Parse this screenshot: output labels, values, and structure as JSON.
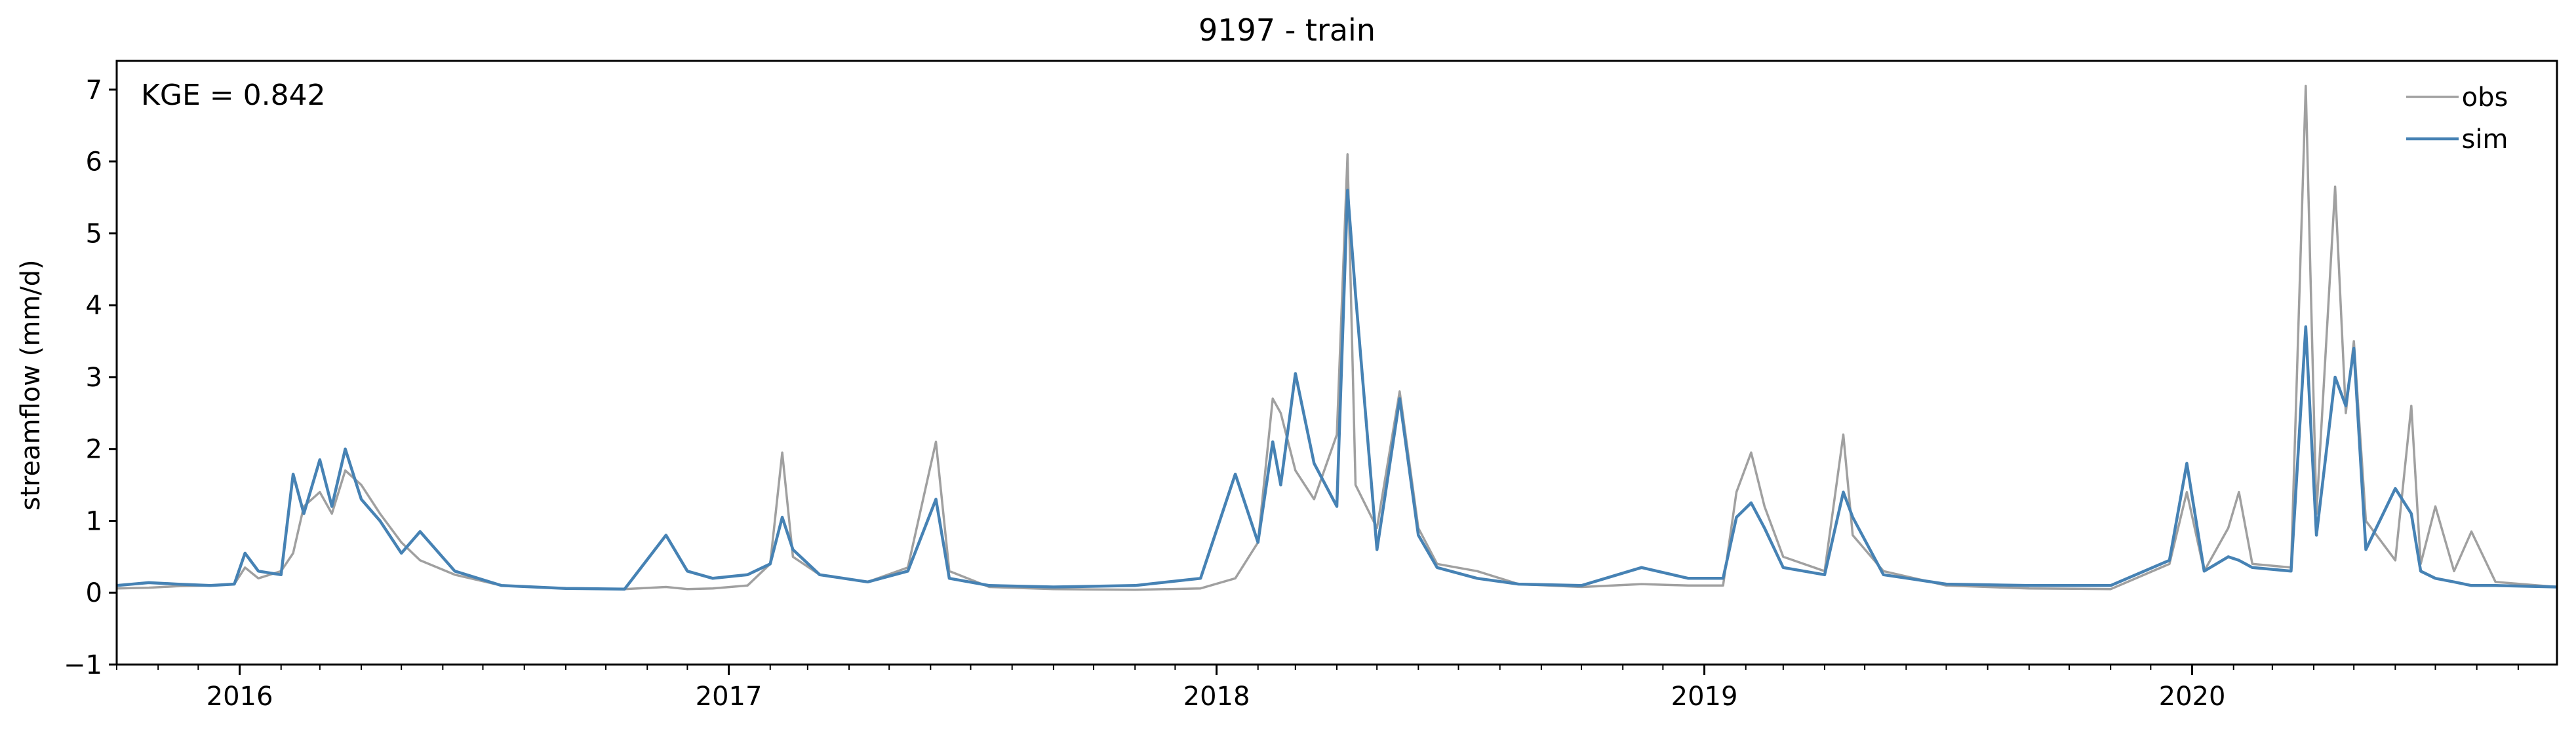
{
  "chart_data": {
    "type": "line",
    "title": "9197 - train",
    "xlabel": "",
    "ylabel": "streamflow (mm/d)",
    "annotation": "KGE = 0.842",
    "xlim": [
      "2015-10-01",
      "2020-09-30"
    ],
    "ylim": [
      -1,
      7.4
    ],
    "yticks": [
      -1,
      0,
      1,
      2,
      3,
      4,
      5,
      6,
      7
    ],
    "xticks": [
      {
        "date": "2016-01-01",
        "label": "2016"
      },
      {
        "date": "2017-01-01",
        "label": "2017"
      },
      {
        "date": "2018-01-01",
        "label": "2018"
      },
      {
        "date": "2019-01-01",
        "label": "2019"
      },
      {
        "date": "2020-01-01",
        "label": "2020"
      }
    ],
    "grid": false,
    "legend": "top-right",
    "colors": {
      "obs": "#a0a0a0",
      "sim": "#4682b4"
    },
    "series": [
      {
        "name": "obs",
        "points": [
          [
            "2015-10-01",
            0.06
          ],
          [
            "2015-10-25",
            0.07
          ],
          [
            "2015-11-15",
            0.09
          ],
          [
            "2015-12-10",
            0.1
          ],
          [
            "2015-12-28",
            0.12
          ],
          [
            "2016-01-05",
            0.35
          ],
          [
            "2016-01-15",
            0.2
          ],
          [
            "2016-02-01",
            0.3
          ],
          [
            "2016-02-10",
            0.55
          ],
          [
            "2016-02-18",
            1.2
          ],
          [
            "2016-03-01",
            1.4
          ],
          [
            "2016-03-10",
            1.1
          ],
          [
            "2016-03-20",
            1.7
          ],
          [
            "2016-04-01",
            1.5
          ],
          [
            "2016-04-15",
            1.1
          ],
          [
            "2016-05-01",
            0.7
          ],
          [
            "2016-05-15",
            0.45
          ],
          [
            "2016-06-10",
            0.25
          ],
          [
            "2016-07-15",
            0.1
          ],
          [
            "2016-09-01",
            0.06
          ],
          [
            "2016-10-15",
            0.05
          ],
          [
            "2016-11-15",
            0.08
          ],
          [
            "2016-12-01",
            0.05
          ],
          [
            "2016-12-20",
            0.06
          ],
          [
            "2017-01-15",
            0.1
          ],
          [
            "2017-02-01",
            0.4
          ],
          [
            "2017-02-10",
            1.95
          ],
          [
            "2017-02-18",
            0.5
          ],
          [
            "2017-03-10",
            0.25
          ],
          [
            "2017-04-15",
            0.15
          ],
          [
            "2017-05-15",
            0.35
          ],
          [
            "2017-06-05",
            2.1
          ],
          [
            "2017-06-15",
            0.3
          ],
          [
            "2017-07-15",
            0.08
          ],
          [
            "2017-09-01",
            0.05
          ],
          [
            "2017-11-01",
            0.04
          ],
          [
            "2017-12-20",
            0.06
          ],
          [
            "2018-01-15",
            0.2
          ],
          [
            "2018-02-01",
            0.7
          ],
          [
            "2018-02-12",
            2.7
          ],
          [
            "2018-02-18",
            2.5
          ],
          [
            "2018-03-01",
            1.7
          ],
          [
            "2018-03-15",
            1.3
          ],
          [
            "2018-04-01",
            2.2
          ],
          [
            "2018-04-09",
            6.1
          ],
          [
            "2018-04-15",
            1.5
          ],
          [
            "2018-05-01",
            0.9
          ],
          [
            "2018-05-18",
            2.8
          ],
          [
            "2018-06-01",
            0.9
          ],
          [
            "2018-06-15",
            0.4
          ],
          [
            "2018-07-15",
            0.3
          ],
          [
            "2018-08-15",
            0.12
          ],
          [
            "2018-10-01",
            0.08
          ],
          [
            "2018-11-15",
            0.12
          ],
          [
            "2018-12-20",
            0.1
          ],
          [
            "2019-01-15",
            0.1
          ],
          [
            "2019-01-25",
            1.4
          ],
          [
            "2019-02-05",
            1.95
          ],
          [
            "2019-02-15",
            1.2
          ],
          [
            "2019-03-01",
            0.5
          ],
          [
            "2019-04-01",
            0.3
          ],
          [
            "2019-04-15",
            2.2
          ],
          [
            "2019-04-22",
            0.8
          ],
          [
            "2019-05-15",
            0.3
          ],
          [
            "2019-07-01",
            0.1
          ],
          [
            "2019-09-01",
            0.06
          ],
          [
            "2019-11-01",
            0.05
          ],
          [
            "2019-12-15",
            0.4
          ],
          [
            "2019-12-28",
            1.4
          ],
          [
            "2020-01-10",
            0.3
          ],
          [
            "2020-01-28",
            0.9
          ],
          [
            "2020-02-05",
            1.4
          ],
          [
            "2020-02-15",
            0.4
          ],
          [
            "2020-03-15",
            0.35
          ],
          [
            "2020-03-26",
            7.05
          ],
          [
            "2020-04-03",
            1.1
          ],
          [
            "2020-04-17",
            5.65
          ],
          [
            "2020-04-25",
            2.5
          ],
          [
            "2020-05-01",
            3.5
          ],
          [
            "2020-05-10",
            1.0
          ],
          [
            "2020-06-01",
            0.45
          ],
          [
            "2020-06-13",
            2.6
          ],
          [
            "2020-06-20",
            0.4
          ],
          [
            "2020-07-01",
            1.2
          ],
          [
            "2020-07-15",
            0.3
          ],
          [
            "2020-07-28",
            0.85
          ],
          [
            "2020-08-15",
            0.15
          ],
          [
            "2020-09-30",
            0.08
          ]
        ]
      },
      {
        "name": "sim",
        "points": [
          [
            "2015-10-01",
            0.1
          ],
          [
            "2015-10-25",
            0.14
          ],
          [
            "2015-11-15",
            0.12
          ],
          [
            "2015-12-10",
            0.1
          ],
          [
            "2015-12-28",
            0.12
          ],
          [
            "2016-01-05",
            0.55
          ],
          [
            "2016-01-15",
            0.3
          ],
          [
            "2016-02-01",
            0.25
          ],
          [
            "2016-02-10",
            1.65
          ],
          [
            "2016-02-18",
            1.1
          ],
          [
            "2016-03-01",
            1.85
          ],
          [
            "2016-03-10",
            1.2
          ],
          [
            "2016-03-20",
            2.0
          ],
          [
            "2016-04-01",
            1.3
          ],
          [
            "2016-04-15",
            1.0
          ],
          [
            "2016-05-01",
            0.55
          ],
          [
            "2016-05-15",
            0.85
          ],
          [
            "2016-06-10",
            0.3
          ],
          [
            "2016-07-15",
            0.1
          ],
          [
            "2016-09-01",
            0.06
          ],
          [
            "2016-10-15",
            0.05
          ],
          [
            "2016-11-15",
            0.8
          ],
          [
            "2016-12-01",
            0.3
          ],
          [
            "2016-12-20",
            0.2
          ],
          [
            "2017-01-15",
            0.25
          ],
          [
            "2017-02-01",
            0.4
          ],
          [
            "2017-02-10",
            1.05
          ],
          [
            "2017-02-18",
            0.6
          ],
          [
            "2017-03-10",
            0.25
          ],
          [
            "2017-04-15",
            0.15
          ],
          [
            "2017-05-15",
            0.3
          ],
          [
            "2017-06-05",
            1.3
          ],
          [
            "2017-06-15",
            0.2
          ],
          [
            "2017-07-15",
            0.1
          ],
          [
            "2017-09-01",
            0.08
          ],
          [
            "2017-11-01",
            0.1
          ],
          [
            "2017-12-20",
            0.2
          ],
          [
            "2018-01-15",
            1.65
          ],
          [
            "2018-02-01",
            0.7
          ],
          [
            "2018-02-12",
            2.1
          ],
          [
            "2018-02-18",
            1.5
          ],
          [
            "2018-03-01",
            3.05
          ],
          [
            "2018-03-15",
            1.8
          ],
          [
            "2018-04-01",
            1.2
          ],
          [
            "2018-04-09",
            5.6
          ],
          [
            "2018-04-15",
            4.15
          ],
          [
            "2018-05-01",
            0.6
          ],
          [
            "2018-05-18",
            2.7
          ],
          [
            "2018-06-01",
            0.8
          ],
          [
            "2018-06-15",
            0.35
          ],
          [
            "2018-07-15",
            0.2
          ],
          [
            "2018-08-15",
            0.12
          ],
          [
            "2018-10-01",
            0.1
          ],
          [
            "2018-11-15",
            0.35
          ],
          [
            "2018-12-20",
            0.2
          ],
          [
            "2019-01-15",
            0.2
          ],
          [
            "2019-01-25",
            1.05
          ],
          [
            "2019-02-05",
            1.25
          ],
          [
            "2019-02-15",
            0.9
          ],
          [
            "2019-03-01",
            0.35
          ],
          [
            "2019-04-01",
            0.25
          ],
          [
            "2019-04-15",
            1.4
          ],
          [
            "2019-04-22",
            1.05
          ],
          [
            "2019-05-15",
            0.25
          ],
          [
            "2019-07-01",
            0.12
          ],
          [
            "2019-09-01",
            0.1
          ],
          [
            "2019-11-01",
            0.1
          ],
          [
            "2019-12-15",
            0.45
          ],
          [
            "2019-12-28",
            1.8
          ],
          [
            "2020-01-10",
            0.3
          ],
          [
            "2020-01-28",
            0.5
          ],
          [
            "2020-02-05",
            0.45
          ],
          [
            "2020-02-15",
            0.35
          ],
          [
            "2020-03-15",
            0.3
          ],
          [
            "2020-03-26",
            3.7
          ],
          [
            "2020-04-03",
            0.8
          ],
          [
            "2020-04-17",
            3.0
          ],
          [
            "2020-04-25",
            2.6
          ],
          [
            "2020-05-01",
            3.4
          ],
          [
            "2020-05-10",
            0.6
          ],
          [
            "2020-06-01",
            1.45
          ],
          [
            "2020-06-13",
            1.1
          ],
          [
            "2020-06-20",
            0.3
          ],
          [
            "2020-07-01",
            0.2
          ],
          [
            "2020-07-15",
            0.15
          ],
          [
            "2020-07-28",
            0.1
          ],
          [
            "2020-08-15",
            0.1
          ],
          [
            "2020-09-30",
            0.08
          ]
        ]
      }
    ]
  }
}
